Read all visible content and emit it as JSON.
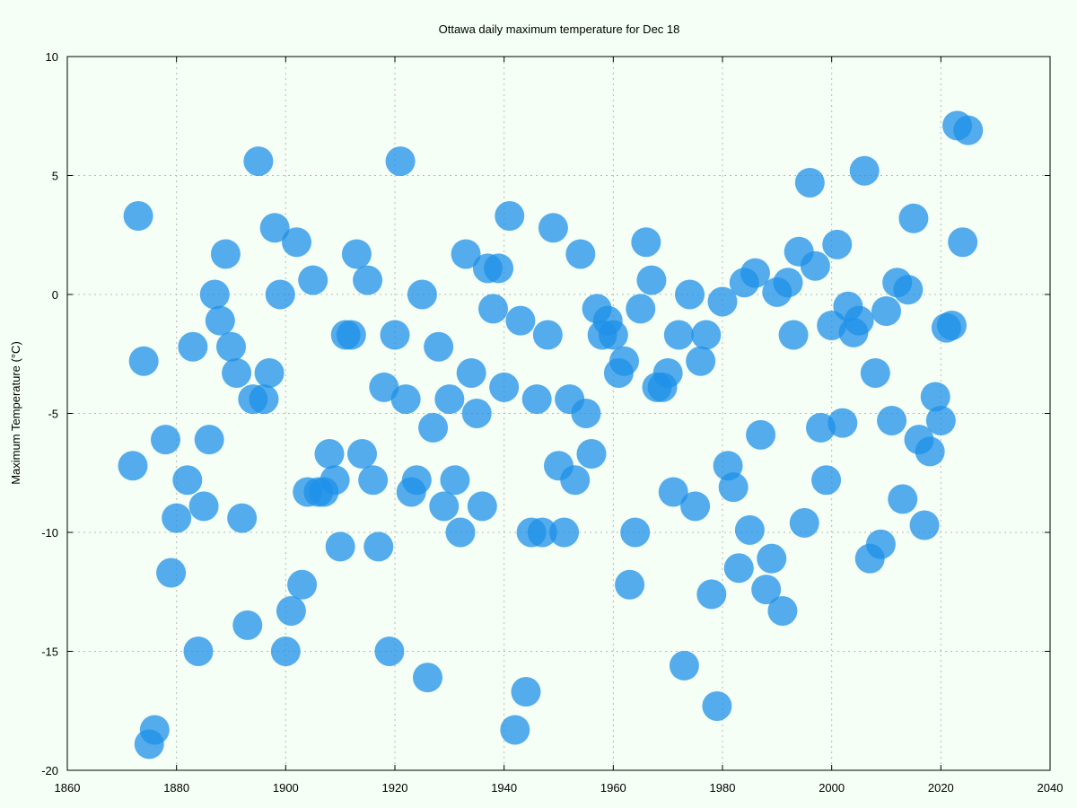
{
  "chart_data": {
    "type": "scatter",
    "title": "Ottawa daily maximum temperature for Dec 18",
    "xlabel": "",
    "ylabel": "Maximum Temperature (°C)",
    "xlim": [
      1860,
      2040
    ],
    "ylim": [
      -20,
      10
    ],
    "xticks": [
      1860,
      1880,
      1900,
      1920,
      1940,
      1960,
      1980,
      2000,
      2020,
      2040
    ],
    "yticks": [
      -20,
      -15,
      -10,
      -5,
      0,
      5,
      10
    ],
    "grid": true,
    "point_color": "#1e90e8",
    "x": [
      1872,
      1873,
      1874,
      1875,
      1876,
      1878,
      1879,
      1880,
      1882,
      1883,
      1884,
      1885,
      1886,
      1887,
      1888,
      1889,
      1890,
      1891,
      1892,
      1893,
      1894,
      1895,
      1896,
      1897,
      1898,
      1899,
      1900,
      1901,
      1902,
      1903,
      1904,
      1905,
      1906,
      1907,
      1908,
      1909,
      1910,
      1911,
      1912,
      1913,
      1914,
      1915,
      1916,
      1917,
      1918,
      1919,
      1920,
      1921,
      1922,
      1923,
      1924,
      1925,
      1926,
      1927,
      1928,
      1929,
      1930,
      1931,
      1932,
      1933,
      1934,
      1935,
      1936,
      1937,
      1938,
      1939,
      1940,
      1941,
      1942,
      1943,
      1944,
      1945,
      1946,
      1947,
      1948,
      1949,
      1950,
      1951,
      1952,
      1953,
      1954,
      1955,
      1956,
      1957,
      1958,
      1959,
      1960,
      1961,
      1962,
      1963,
      1964,
      1965,
      1966,
      1967,
      1968,
      1969,
      1970,
      1971,
      1972,
      1973,
      1974,
      1975,
      1976,
      1977,
      1978,
      1979,
      1980,
      1981,
      1982,
      1983,
      1984,
      1985,
      1986,
      1987,
      1988,
      1989,
      1990,
      1991,
      1992,
      1993,
      1994,
      1995,
      1996,
      1997,
      1998,
      1999,
      2000,
      2001,
      2002,
      2003,
      2004,
      2005,
      2006,
      2007,
      2008,
      2009,
      2010,
      2011,
      2012,
      2013,
      2014,
      2015,
      2016,
      2017,
      2018,
      2019,
      2020,
      2021,
      2022,
      2023,
      2024,
      2025
    ],
    "y": [
      -7.2,
      3.3,
      -2.8,
      -18.9,
      -18.3,
      -6.1,
      -11.7,
      -9.4,
      -7.8,
      -2.2,
      -15.0,
      -8.9,
      -6.1,
      0.0,
      -1.1,
      1.7,
      -2.2,
      -3.3,
      -9.4,
      -13.9,
      -4.4,
      5.6,
      -4.4,
      -3.3,
      2.8,
      0.0,
      -15.0,
      -13.3,
      2.2,
      -12.2,
      -8.3,
      0.6,
      -8.3,
      -8.3,
      -6.7,
      -7.8,
      -10.6,
      -1.7,
      -1.7,
      1.7,
      -6.7,
      0.6,
      -7.8,
      -10.6,
      -3.9,
      -15.0,
      -1.7,
      5.6,
      -4.4,
      -8.3,
      -7.8,
      0.0,
      -16.1,
      -5.6,
      -2.2,
      -8.9,
      -4.4,
      -7.8,
      -10.0,
      1.7,
      -3.3,
      -5.0,
      -8.9,
      1.1,
      -0.6,
      1.1,
      -3.9,
      3.3,
      -18.3,
      -1.1,
      -16.7,
      -10.0,
      -4.4,
      -10.0,
      -1.7,
      2.8,
      -7.2,
      -10.0,
      -4.4,
      -7.8,
      1.7,
      -5.0,
      -6.7,
      -0.6,
      -1.7,
      -1.1,
      -1.7,
      -3.3,
      -2.8,
      -12.2,
      -10.0,
      -0.6,
      2.2,
      0.6,
      -3.9,
      -3.9,
      -3.3,
      -8.3,
      -1.7,
      -15.6,
      0.0,
      -8.9,
      -2.8,
      -1.7,
      -12.6,
      -17.3,
      -0.3,
      -7.2,
      -8.1,
      -11.5,
      0.5,
      -9.9,
      0.9,
      -5.9,
      -12.4,
      -11.1,
      0.1,
      -13.3,
      0.5,
      -1.7,
      1.8,
      -9.6,
      4.7,
      1.2,
      -5.6,
      -7.8,
      -1.3,
      2.1,
      -5.4,
      -0.5,
      -1.6,
      -1.1,
      5.2,
      -11.1,
      -3.3,
      -10.5,
      -0.7,
      -5.3,
      0.5,
      -8.6,
      0.2,
      3.2,
      -6.1,
      -9.7,
      -6.6,
      -4.3,
      -5.3,
      -1.4,
      -1.3,
      7.1,
      2.2,
      6.9
    ]
  }
}
